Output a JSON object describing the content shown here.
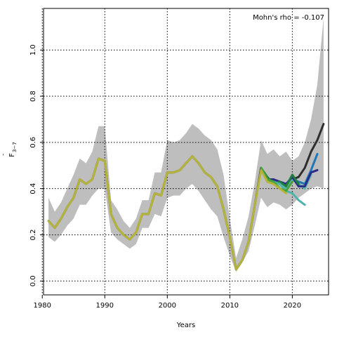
{
  "chart_data": {
    "type": "line",
    "title": "",
    "xlabel": "Years",
    "ylabel_main": "F",
    "ylabel_sub": "3−7",
    "annotation": "Mohn's rho = -0.107",
    "xlim": [
      1980.2,
      2025.8
    ],
    "ylim": [
      -0.06,
      1.18
    ],
    "xticks": [
      1980,
      1990,
      2000,
      2010,
      2020
    ],
    "yticks": [
      0.0,
      0.2,
      0.4,
      0.6,
      0.8,
      1.0
    ],
    "ytick_labels": [
      "0.0",
      "0.2",
      "0.4",
      "0.6",
      "0.8",
      "1.0"
    ],
    "grid": true,
    "ci_band": {
      "color": "#bebebe",
      "x": [
        1981,
        1982,
        1983,
        1984,
        1985,
        1986,
        1987,
        1988,
        1989,
        1990,
        1991,
        1992,
        1993,
        1994,
        1995,
        1996,
        1997,
        1998,
        1999,
        2000,
        2001,
        2002,
        2003,
        2004,
        2005,
        2006,
        2007,
        2008,
        2009,
        2010,
        2011,
        2012,
        2013,
        2014,
        2015,
        2016,
        2017,
        2018,
        2019,
        2020,
        2021,
        2022,
        2023,
        2024,
        2025
      ],
      "lower": [
        0.19,
        0.17,
        0.2,
        0.24,
        0.27,
        0.33,
        0.33,
        0.37,
        0.4,
        0.4,
        0.21,
        0.18,
        0.16,
        0.14,
        0.16,
        0.23,
        0.23,
        0.29,
        0.28,
        0.36,
        0.37,
        0.37,
        0.4,
        0.42,
        0.39,
        0.35,
        0.31,
        0.28,
        0.19,
        0.11,
        0.04,
        0.08,
        0.13,
        0.24,
        0.36,
        0.32,
        0.34,
        0.33,
        0.31,
        0.33,
        0.36,
        0.38,
        0.4,
        0.41,
        0.4
      ],
      "upper": [
        0.36,
        0.3,
        0.34,
        0.4,
        0.46,
        0.53,
        0.51,
        0.56,
        0.67,
        0.67,
        0.35,
        0.31,
        0.26,
        0.23,
        0.27,
        0.35,
        0.35,
        0.47,
        0.47,
        0.61,
        0.6,
        0.61,
        0.64,
        0.68,
        0.66,
        0.63,
        0.61,
        0.57,
        0.46,
        0.27,
        0.1,
        0.18,
        0.28,
        0.43,
        0.61,
        0.55,
        0.57,
        0.54,
        0.56,
        0.52,
        0.54,
        0.6,
        0.7,
        0.85,
        1.14
      ]
    },
    "series": [
      {
        "color": "#2e2e2e",
        "x": [
          1981,
          1982,
          1983,
          1984,
          1985,
          1986,
          1987,
          1988,
          1989,
          1990,
          1991,
          1992,
          1993,
          1994,
          1995,
          1996,
          1997,
          1998,
          1999,
          2000,
          2001,
          2002,
          2003,
          2004,
          2005,
          2006,
          2007,
          2008,
          2009,
          2010,
          2011,
          2012,
          2013,
          2014,
          2015,
          2016,
          2017,
          2018,
          2019,
          2020,
          2021,
          2022,
          2023,
          2024,
          2025
        ],
        "values": [
          0.26,
          0.23,
          0.27,
          0.32,
          0.36,
          0.44,
          0.42,
          0.44,
          0.53,
          0.52,
          0.29,
          0.23,
          0.2,
          0.18,
          0.21,
          0.29,
          0.29,
          0.38,
          0.37,
          0.47,
          0.47,
          0.48,
          0.51,
          0.54,
          0.51,
          0.47,
          0.45,
          0.41,
          0.31,
          0.19,
          0.05,
          0.09,
          0.17,
          0.33,
          0.49,
          0.43,
          0.44,
          0.42,
          0.41,
          0.44,
          0.45,
          0.49,
          0.56,
          0.61,
          0.68
        ]
      },
      {
        "color": "#1f78b4",
        "x": [
          2015,
          2016,
          2017,
          2018,
          2019,
          2020,
          2021,
          2022,
          2023,
          2024
        ],
        "values": [
          0.49,
          0.43,
          0.44,
          0.42,
          0.41,
          0.44,
          0.43,
          0.42,
          0.48,
          0.55
        ]
      },
      {
        "color": "#5ab4ac",
        "x": [
          2015,
          2016,
          2017,
          2018,
          2019,
          2020,
          2021,
          2022,
          2023
        ],
        "values": [
          0.49,
          0.43,
          0.43,
          0.42,
          0.4,
          0.44,
          0.42,
          0.4,
          0.46
        ]
      },
      {
        "color": "#2a2a8a",
        "x": [
          2015,
          2016,
          2017,
          2018,
          2019,
          2020,
          2021,
          2022,
          2023,
          2024
        ],
        "values": [
          0.49,
          0.44,
          0.44,
          0.43,
          0.42,
          0.45,
          0.41,
          0.41,
          0.47,
          0.48
        ]
      },
      {
        "color": "#1f7f3b",
        "x": [
          2015,
          2016,
          2017,
          2018,
          2019,
          2020,
          2021
        ],
        "values": [
          0.49,
          0.45,
          0.42,
          0.43,
          0.41,
          0.46,
          0.42
        ]
      },
      {
        "color": "#4fb3a9",
        "x": [
          2015,
          2016,
          2017,
          2018,
          2019,
          2020,
          2021,
          2022
        ],
        "values": [
          0.49,
          0.44,
          0.43,
          0.42,
          0.39,
          0.38,
          0.35,
          0.33
        ]
      },
      {
        "color": "#4aa23a",
        "x": [
          2015,
          2016,
          2017,
          2018,
          2019,
          2020
        ],
        "values": [
          0.49,
          0.44,
          0.43,
          0.4,
          0.39,
          0.43
        ]
      },
      {
        "color": "#b5b43a",
        "x": [
          1981,
          1982,
          1983,
          1984,
          1985,
          1986,
          1987,
          1988,
          1989,
          1990,
          1991,
          1992,
          1993,
          1994,
          1995,
          1996,
          1997,
          1998,
          1999,
          2000,
          2001,
          2002,
          2003,
          2004,
          2005,
          2006,
          2007,
          2008,
          2009,
          2010,
          2011,
          2012,
          2013,
          2014,
          2015,
          2016,
          2017,
          2018,
          2019
        ],
        "values": [
          0.26,
          0.23,
          0.27,
          0.32,
          0.36,
          0.44,
          0.42,
          0.44,
          0.53,
          0.52,
          0.29,
          0.23,
          0.2,
          0.18,
          0.21,
          0.29,
          0.29,
          0.38,
          0.37,
          0.47,
          0.47,
          0.48,
          0.51,
          0.54,
          0.51,
          0.47,
          0.45,
          0.41,
          0.31,
          0.19,
          0.05,
          0.09,
          0.17,
          0.33,
          0.48,
          0.43,
          0.42,
          0.4,
          0.38
        ]
      }
    ],
    "frame_color": "#000000",
    "grid_color": "#000000"
  }
}
